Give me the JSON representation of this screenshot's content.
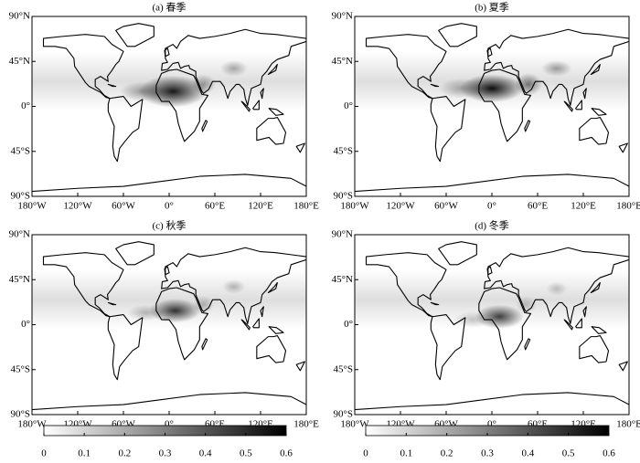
{
  "panels": [
    {
      "title": "(a) 春季"
    },
    {
      "title": "(b) 夏季"
    },
    {
      "title": "(c) 秋季"
    },
    {
      "title": "(d) 冬季"
    }
  ],
  "lon_ticks": [
    {
      "value": -180,
      "label": "180°W"
    },
    {
      "value": -120,
      "label": "120°W"
    },
    {
      "value": -60,
      "label": "60°W"
    },
    {
      "value": 0,
      "label": "0°"
    },
    {
      "value": 60,
      "label": "60°E"
    },
    {
      "value": 120,
      "label": "120°E"
    },
    {
      "value": 180,
      "label": "180°E"
    }
  ],
  "lat_ticks": [
    {
      "value": 90,
      "label": "90°N"
    },
    {
      "value": 45,
      "label": "45°N"
    },
    {
      "value": 0,
      "label": "0°"
    },
    {
      "value": -45,
      "label": "45°S"
    },
    {
      "value": -90,
      "label": "90°S"
    }
  ],
  "colorbars": [
    {
      "range": [
        0,
        0.6
      ],
      "ticks": [
        0,
        0.1,
        0.2,
        0.3,
        0.4,
        0.5,
        0.6
      ]
    },
    {
      "range": [
        0,
        0.6
      ],
      "ticks": [
        0,
        0.1,
        0.2,
        0.3,
        0.4,
        0.5,
        0.6
      ]
    }
  ]
}
